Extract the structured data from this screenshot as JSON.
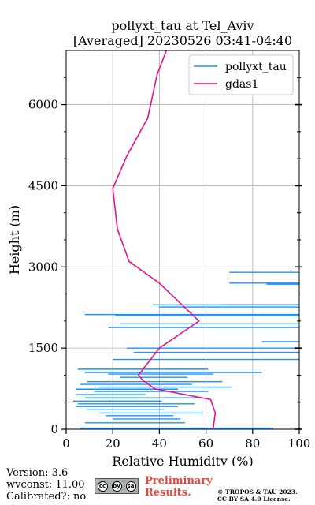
{
  "chart_data": {
    "type": "line",
    "title": "pollyxt_tau at Tel_Aviv",
    "subtitle": "[Averaged] 20230526 03:41-04:40",
    "xlabel": "Relative Humidity (%)",
    "ylabel": "Height (m)",
    "xlim": [
      0,
      100
    ],
    "ylim": [
      0,
      7000
    ],
    "xticks": [
      0,
      20,
      40,
      60,
      80,
      100
    ],
    "yticks": [
      0,
      1500,
      3000,
      4500,
      6000
    ],
    "grid": true,
    "legend": "top-right",
    "series": [
      {
        "name": "pollyxt_tau",
        "color": "#1e90ff",
        "type": "horizontal-segments",
        "segments": [
          [
            70,
            100,
            2900
          ],
          [
            70,
            100,
            2700
          ],
          [
            86,
            100,
            2680
          ],
          [
            68,
            100,
            2300
          ],
          [
            37,
            100,
            2300
          ],
          [
            40,
            100,
            2260
          ],
          [
            8,
            100,
            2120
          ],
          [
            21,
            100,
            2100
          ],
          [
            23,
            100,
            1950
          ],
          [
            18,
            100,
            1880
          ],
          [
            84,
            100,
            1620
          ],
          [
            26,
            100,
            1500
          ],
          [
            29,
            100,
            1420
          ],
          [
            20,
            100,
            1290
          ],
          [
            5,
            61,
            1110
          ],
          [
            8,
            84,
            1050
          ],
          [
            18,
            63,
            1020
          ],
          [
            23,
            52,
            960
          ],
          [
            9,
            67,
            880
          ],
          [
            6,
            54,
            830
          ],
          [
            14,
            71,
            780
          ],
          [
            4,
            48,
            740
          ],
          [
            12,
            61,
            700
          ],
          [
            4,
            34,
            640
          ],
          [
            8,
            56,
            580
          ],
          [
            3,
            41,
            520
          ],
          [
            5,
            55,
            470
          ],
          [
            4,
            48,
            420
          ],
          [
            9,
            42,
            360
          ],
          [
            14,
            59,
            300
          ],
          [
            17,
            46,
            250
          ],
          [
            20,
            49,
            190
          ],
          [
            8,
            51,
            120
          ],
          [
            6,
            89,
            20
          ]
        ]
      },
      {
        "name": "gdas1",
        "color": "#e8108c",
        "type": "profile",
        "x": [
          63,
          64,
          62,
          38,
          33,
          31,
          40,
          57,
          40,
          27,
          22,
          20,
          26,
          35,
          39,
          43
        ],
        "y": [
          0,
          300,
          550,
          750,
          900,
          1000,
          1500,
          2000,
          2700,
          3100,
          3700,
          4450,
          5050,
          5750,
          6550,
          7000
        ]
      }
    ]
  },
  "footer": {
    "version": "Version: 3.6",
    "wvconst": "wvconst:  11.00",
    "calibrated": "Calibrated?: no",
    "preliminary_line1": "Preliminary",
    "preliminary_line2": "Results.",
    "copyright_line1": "© TROPOS & TAU 2023.",
    "copyright_line2": "CC BY SA 4.0 License.",
    "license_badge": [
      "cc",
      "by",
      "sa"
    ]
  }
}
